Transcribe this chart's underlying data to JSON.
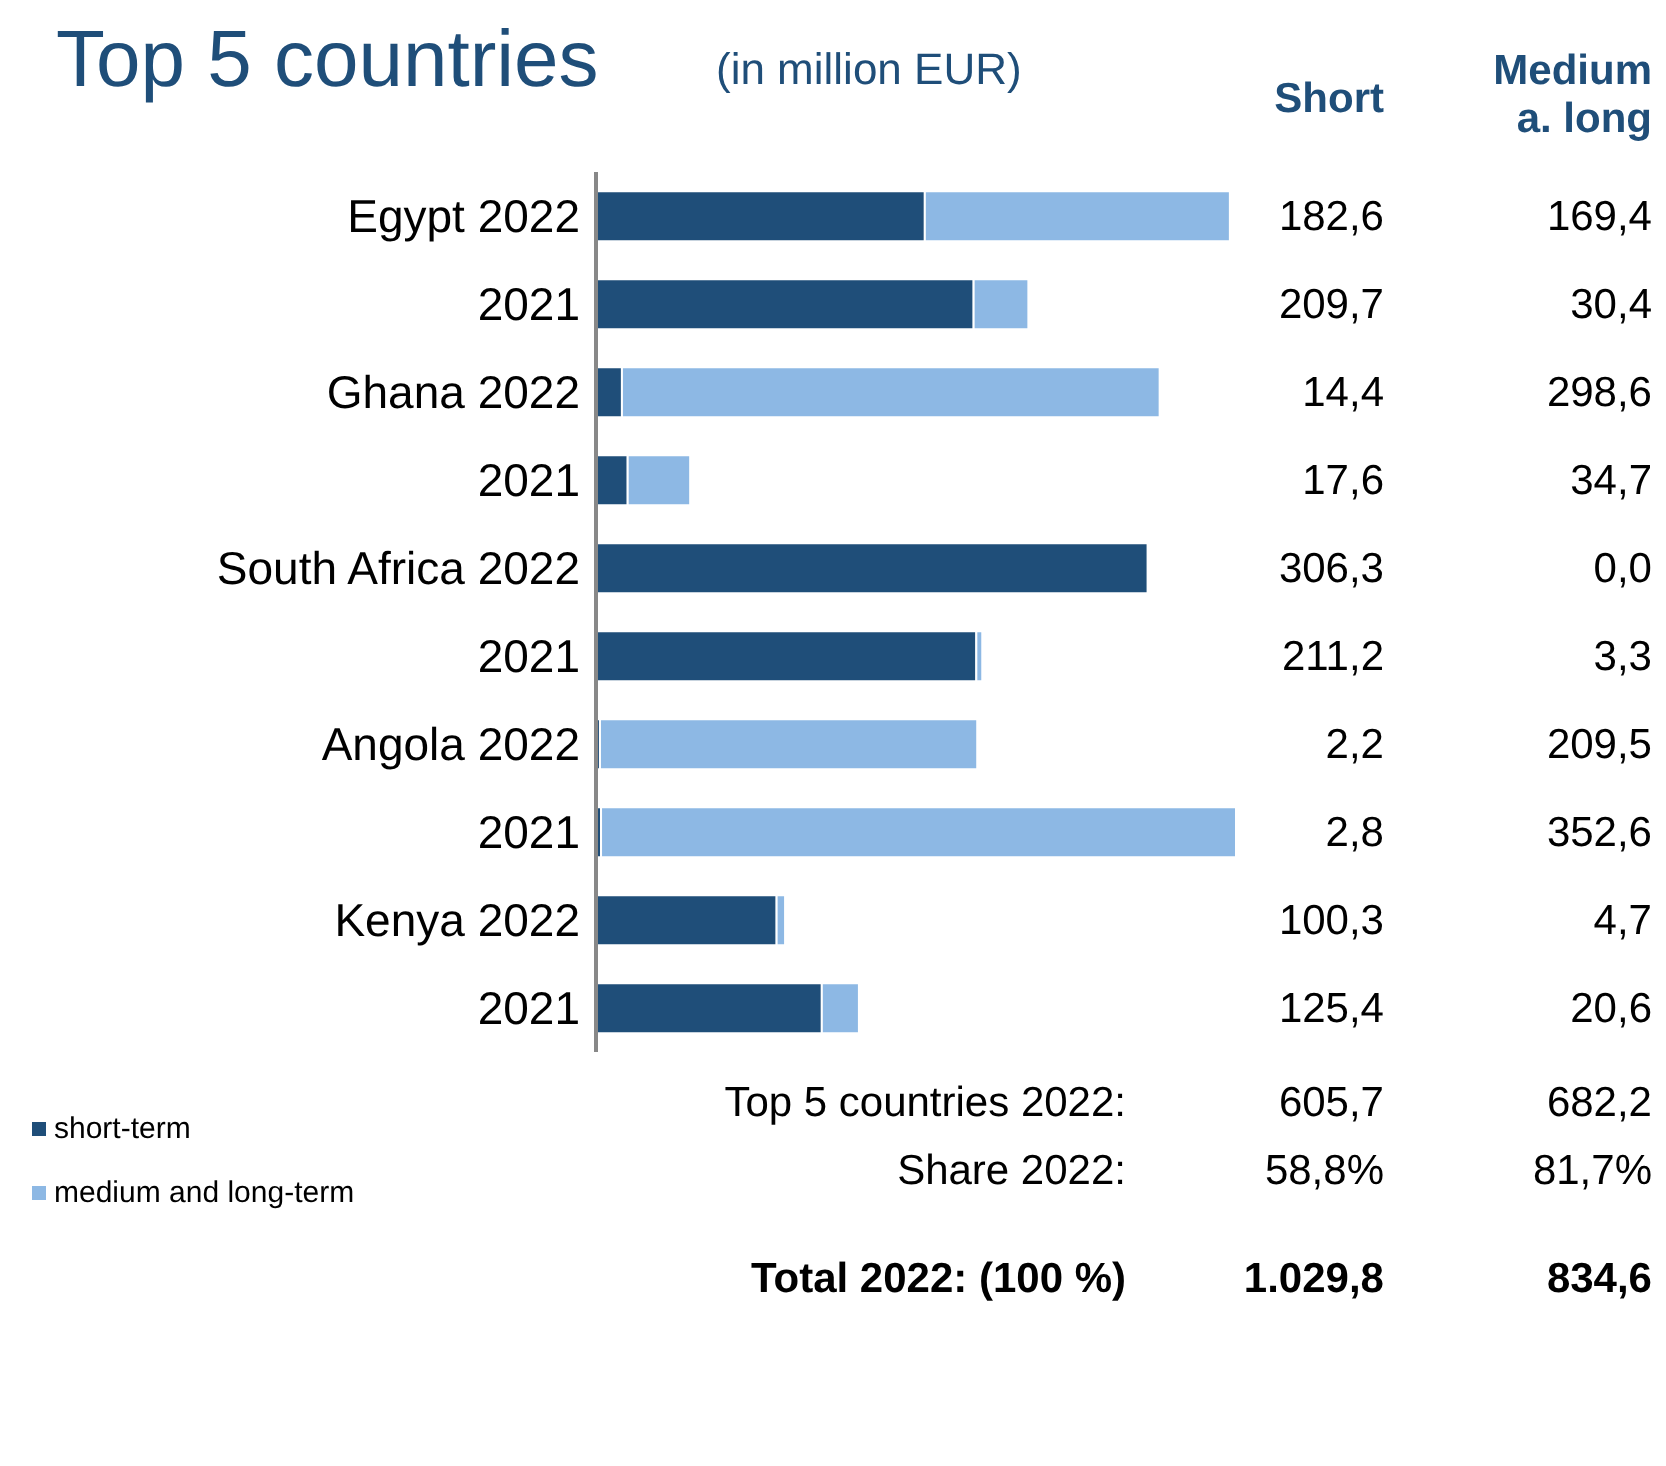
{
  "chart_data": {
    "type": "bar",
    "orientation": "horizontal",
    "stacked": true,
    "title": "Top 5 countries",
    "subtitle": "(in million EUR)",
    "categories": [
      "Egypt 2022",
      "2021",
      "Ghana 2022",
      "2021",
      "South Africa 2022",
      "2021",
      "Angola 2022",
      "2021",
      "Kenya 2022",
      "2021"
    ],
    "series": [
      {
        "name": "short-term",
        "color": "#1f4e79",
        "values": [
          182.6,
          209.7,
          14.4,
          17.6,
          306.3,
          211.2,
          2.2,
          2.8,
          100.3,
          125.4
        ],
        "value_labels": [
          "182,6",
          "209,7",
          "14,4",
          "17,6",
          "306,3",
          "211,2",
          "2,2",
          "2,8",
          "100,3",
          "125,4"
        ]
      },
      {
        "name": "medium and long-term",
        "color": "#8db8e4",
        "values": [
          169.4,
          30.4,
          298.6,
          34.7,
          0.0,
          3.3,
          209.5,
          352.6,
          4.7,
          20.6
        ],
        "value_labels": [
          "169,4",
          "30,4",
          "298,6",
          "34,7",
          "0,0",
          "3,3",
          "209,5",
          "352,6",
          "4,7",
          "20,6"
        ]
      }
    ],
    "legend": "bottom left",
    "annotations": [
      "Short",
      "Medium a. long",
      "Top 5 countries 2022:",
      "605,7",
      "682,2",
      "Share 2022:",
      "58,8%",
      "81,7%",
      "Total 2022: (100 %)",
      "1.029,8",
      "834,6"
    ]
  }
}
